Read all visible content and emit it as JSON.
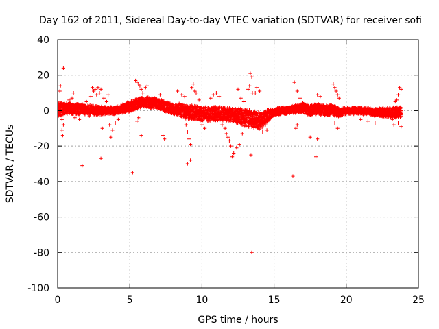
{
  "chart_data": {
    "type": "scatter",
    "title": "Day 162 of 2011, Sidereal Day-to-day VTEC variation (SDTVAR) for receiver sofi",
    "xlabel": "GPS time / hours",
    "ylabel": "SDTVAR / TECUs",
    "xlim": [
      0,
      25
    ],
    "ylim": [
      -100,
      40
    ],
    "xticks": [
      "0",
      "5",
      "10",
      "15",
      "20",
      "25"
    ],
    "yticks": [
      "40",
      "20",
      "0",
      "-20",
      "-40",
      "-60",
      "-80",
      "-100"
    ],
    "grid": true,
    "marker": "+",
    "series_color": "#ff0000",
    "band": {
      "description": "dense band of points across the day",
      "x_step": 0.012,
      "centerline": [
        [
          0,
          0.5
        ],
        [
          0.5,
          1.5
        ],
        [
          1,
          1
        ],
        [
          2,
          0.5
        ],
        [
          3,
          0
        ],
        [
          4,
          0
        ],
        [
          4.7,
          1.5
        ],
        [
          5.5,
          4
        ],
        [
          6,
          5
        ],
        [
          6.8,
          4
        ],
        [
          7.5,
          2
        ],
        [
          8,
          1
        ],
        [
          8.5,
          0.5
        ],
        [
          9,
          -1
        ],
        [
          9.5,
          -1
        ],
        [
          10,
          -2
        ],
        [
          11,
          -1.5
        ],
        [
          12,
          -2
        ],
        [
          12.5,
          -3
        ],
        [
          13,
          -4
        ],
        [
          13.5,
          -5
        ],
        [
          14,
          -6
        ],
        [
          14.5,
          -3
        ],
        [
          15,
          -1
        ],
        [
          15.5,
          0
        ],
        [
          16,
          0
        ],
        [
          16.5,
          1
        ],
        [
          17,
          1.5
        ],
        [
          17.5,
          0
        ],
        [
          18,
          1
        ],
        [
          18.5,
          0
        ],
        [
          19,
          0.5
        ],
        [
          19.5,
          -1
        ],
        [
          20,
          0
        ],
        [
          21,
          0
        ],
        [
          22,
          -1
        ],
        [
          22.5,
          -1
        ],
        [
          23,
          -1
        ],
        [
          23.8,
          -1
        ]
      ],
      "halfwidth": [
        [
          0,
          4
        ],
        [
          1,
          3
        ],
        [
          2,
          3
        ],
        [
          4,
          2
        ],
        [
          5,
          3
        ],
        [
          6,
          3
        ],
        [
          7,
          3
        ],
        [
          8,
          3
        ],
        [
          9,
          4
        ],
        [
          10,
          4
        ],
        [
          12,
          4
        ],
        [
          13,
          5
        ],
        [
          14,
          5
        ],
        [
          15,
          2
        ],
        [
          16,
          2
        ],
        [
          17,
          3
        ],
        [
          18,
          3
        ],
        [
          19,
          3
        ],
        [
          20,
          2
        ],
        [
          22,
          2
        ],
        [
          23,
          3
        ],
        [
          23.8,
          3
        ]
      ]
    },
    "outliers": [
      [
        0.4,
        24
      ],
      [
        0.2,
        14
      ],
      [
        0.15,
        11
      ],
      [
        0.3,
        -5
      ],
      [
        0.4,
        -8
      ],
      [
        0.3,
        -11
      ],
      [
        0.35,
        -14
      ],
      [
        0.8,
        6
      ],
      [
        1.0,
        7
      ],
      [
        1.1,
        10
      ],
      [
        1.2,
        -4
      ],
      [
        1.5,
        -5
      ],
      [
        1.7,
        -31
      ],
      [
        2.0,
        5
      ],
      [
        2.2,
        -3
      ],
      [
        2.3,
        8
      ],
      [
        2.4,
        13
      ],
      [
        2.5,
        11
      ],
      [
        2.6,
        12
      ],
      [
        2.7,
        9
      ],
      [
        2.8,
        13
      ],
      [
        2.9,
        10
      ],
      [
        3.0,
        12
      ],
      [
        3.1,
        -10
      ],
      [
        3.0,
        -27
      ],
      [
        3.2,
        7
      ],
      [
        3.4,
        5
      ],
      [
        3.6,
        -8
      ],
      [
        3.7,
        -15
      ],
      [
        3.8,
        -11
      ],
      [
        3.5,
        9
      ],
      [
        4.0,
        -7
      ],
      [
        4.2,
        -5
      ],
      [
        5.2,
        -35
      ],
      [
        5.4,
        17
      ],
      [
        5.5,
        16
      ],
      [
        5.6,
        15
      ],
      [
        5.7,
        14
      ],
      [
        5.8,
        12
      ],
      [
        5.9,
        10
      ],
      [
        6.1,
        13
      ],
      [
        6.2,
        14
      ],
      [
        5.8,
        -14
      ],
      [
        5.6,
        -4
      ],
      [
        5.5,
        -6
      ],
      [
        7.1,
        9
      ],
      [
        7.3,
        -14
      ],
      [
        7.4,
        -16
      ],
      [
        7.2,
        6
      ],
      [
        8.3,
        11
      ],
      [
        8.6,
        9
      ],
      [
        8.8,
        8
      ],
      [
        8.9,
        -8
      ],
      [
        9.0,
        -12
      ],
      [
        9.1,
        -16
      ],
      [
        9.2,
        -19
      ],
      [
        9.0,
        -30
      ],
      [
        9.2,
        -28
      ],
      [
        9.3,
        13
      ],
      [
        9.4,
        15
      ],
      [
        9.5,
        11
      ],
      [
        9.6,
        10
      ],
      [
        9.8,
        6
      ],
      [
        10.0,
        -8
      ],
      [
        10.2,
        -10
      ],
      [
        10.4,
        -6
      ],
      [
        10.6,
        7
      ],
      [
        10.8,
        9
      ],
      [
        11.0,
        10
      ],
      [
        11.2,
        8
      ],
      [
        11.4,
        -8
      ],
      [
        11.6,
        -10
      ],
      [
        11.7,
        -13
      ],
      [
        11.8,
        -15
      ],
      [
        11.9,
        -17
      ],
      [
        12.0,
        -20
      ],
      [
        12.1,
        -26
      ],
      [
        12.2,
        -24
      ],
      [
        12.4,
        -21
      ],
      [
        12.6,
        -19
      ],
      [
        12.8,
        -13
      ],
      [
        12.5,
        12
      ],
      [
        12.7,
        7
      ],
      [
        12.9,
        5
      ],
      [
        13.2,
        12
      ],
      [
        13.3,
        14
      ],
      [
        13.35,
        21
      ],
      [
        13.45,
        19
      ],
      [
        13.5,
        10
      ],
      [
        13.4,
        -25
      ],
      [
        13.45,
        -80
      ],
      [
        13.7,
        10
      ],
      [
        13.8,
        13
      ],
      [
        14.0,
        11
      ],
      [
        14.2,
        -12
      ],
      [
        14.4,
        -8
      ],
      [
        14.5,
        -11
      ],
      [
        16.3,
        -37
      ],
      [
        16.4,
        16
      ],
      [
        16.6,
        11
      ],
      [
        16.8,
        7
      ],
      [
        16.5,
        -10
      ],
      [
        16.6,
        -8
      ],
      [
        17.5,
        -15
      ],
      [
        17.9,
        -26
      ],
      [
        18.0,
        9
      ],
      [
        18.2,
        8
      ],
      [
        18.0,
        -16
      ],
      [
        19.1,
        15
      ],
      [
        19.2,
        13
      ],
      [
        19.3,
        11
      ],
      [
        19.4,
        9
      ],
      [
        19.5,
        7
      ],
      [
        19.2,
        -7
      ],
      [
        19.4,
        -10
      ],
      [
        21.0,
        -5
      ],
      [
        21.5,
        -6
      ],
      [
        22.0,
        -7
      ],
      [
        23.3,
        -8
      ],
      [
        23.4,
        5
      ],
      [
        23.5,
        6
      ],
      [
        23.6,
        9
      ],
      [
        23.7,
        13
      ],
      [
        23.8,
        12
      ],
      [
        23.8,
        -9
      ],
      [
        23.6,
        -7
      ],
      [
        23.2,
        -5
      ]
    ]
  }
}
